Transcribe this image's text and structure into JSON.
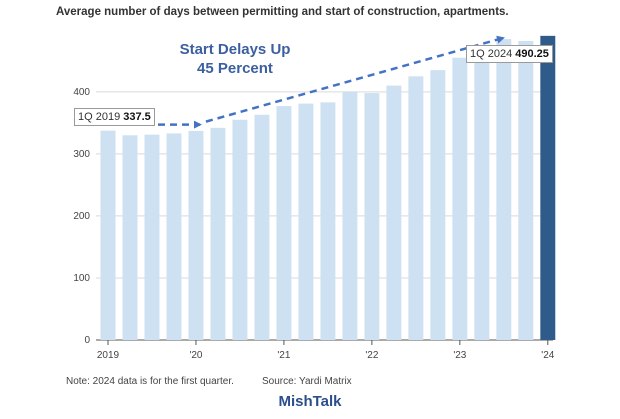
{
  "chart_data": {
    "type": "bar",
    "title": "Average number of days between permitting and start of construction, apartments.",
    "xlabel": "",
    "ylabel": "",
    "ylim": [
      0,
      490
    ],
    "yticks": [
      0,
      100,
      200,
      300,
      400
    ],
    "xtick_labels": [
      "2019",
      "'20",
      "'21",
      "'22",
      "'23",
      "'24"
    ],
    "categories": [
      "1Q 2019",
      "2Q 2019",
      "3Q 2019",
      "4Q 2019",
      "1Q 2020",
      "2Q 2020",
      "3Q 2020",
      "4Q 2020",
      "1Q 2021",
      "2Q 2021",
      "3Q 2021",
      "4Q 2021",
      "1Q 2022",
      "2Q 2022",
      "3Q 2022",
      "4Q 2022",
      "1Q 2023",
      "2Q 2023",
      "3Q 2023",
      "4Q 2023",
      "1Q 2024"
    ],
    "values": [
      337.5,
      330,
      331,
      333,
      337,
      342,
      355,
      363,
      377,
      381,
      383,
      400,
      398,
      410,
      425,
      435,
      455,
      470,
      485,
      482,
      490.25
    ],
    "grid": true,
    "bar_color": "#cde1f3",
    "highlight_color": "#2f5b8a",
    "arrow_color": "#4472c4",
    "headline": [
      "Start Delays Up",
      "45 Percent"
    ],
    "callouts": [
      {
        "label": "1Q 2019",
        "value": "337.5"
      },
      {
        "label": "1Q 2024",
        "value": "490.25"
      }
    ],
    "note": "Note: 2024 data is for the first quarter.",
    "source": "Source: Yardi Matrix"
  },
  "brand": "MishTalk"
}
